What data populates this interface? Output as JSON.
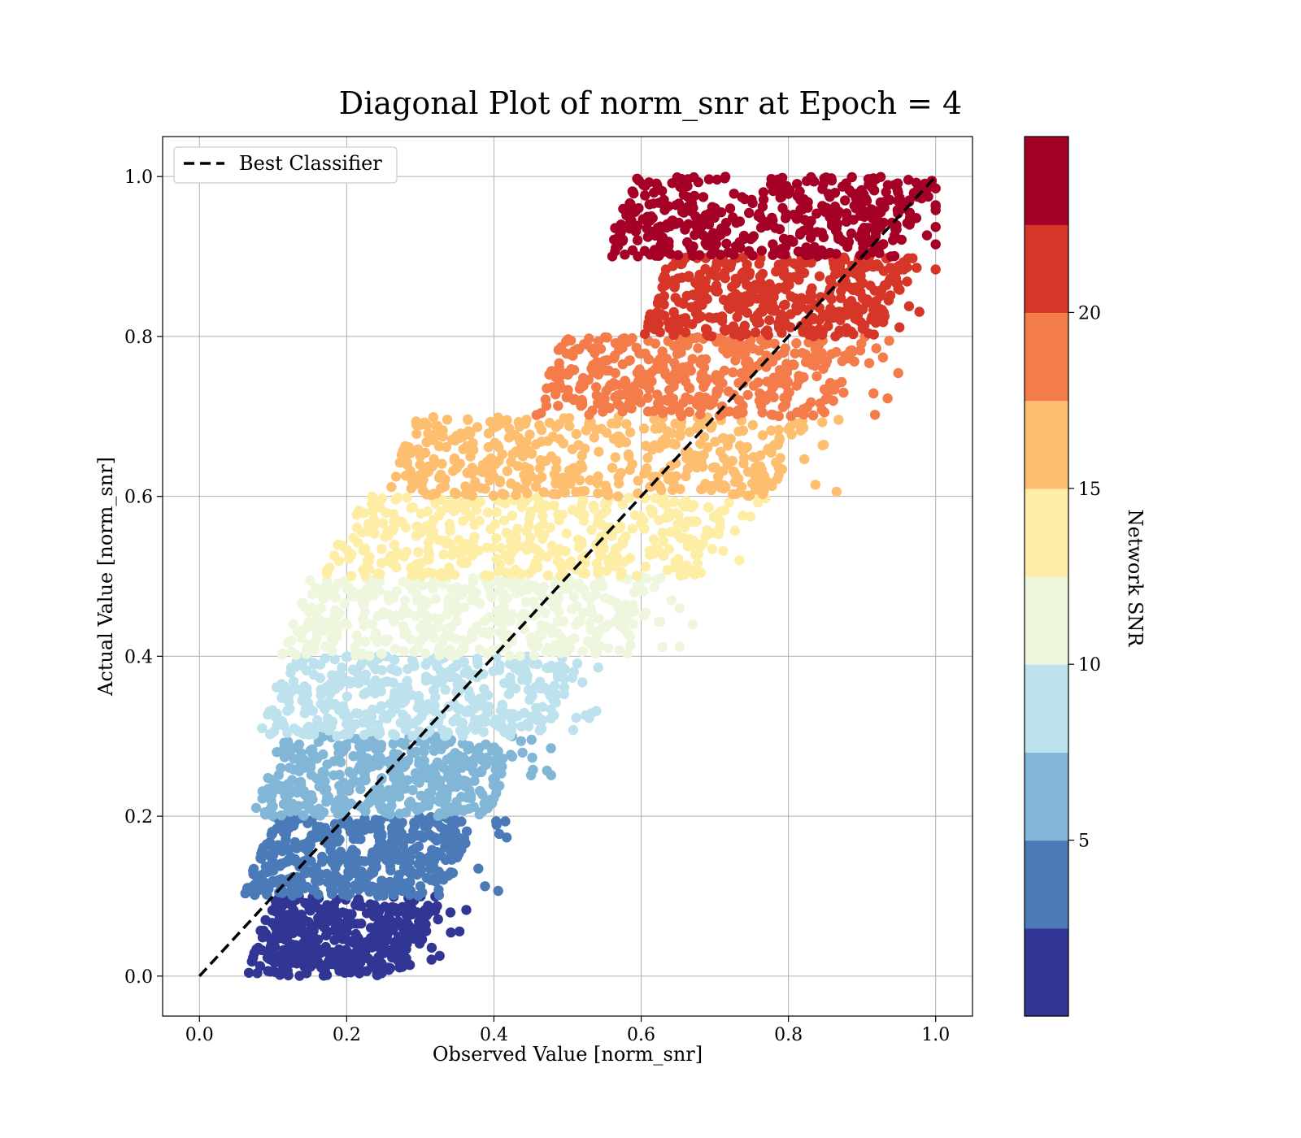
{
  "chart_data": {
    "type": "scatter",
    "title": "Diagonal Plot of norm_snr at Epoch = 4",
    "xlabel": "Observed Value [norm_snr]",
    "ylabel": "Actual Value [norm_snr]",
    "xlim": [
      -0.05,
      1.05
    ],
    "ylim": [
      -0.05,
      1.05
    ],
    "x_ticks": [
      "0.0",
      "0.2",
      "0.4",
      "0.6",
      "0.8",
      "1.0"
    ],
    "y_ticks": [
      "0.0",
      "0.2",
      "0.4",
      "0.6",
      "0.8",
      "1.0"
    ],
    "grid": true,
    "legend": {
      "placement": "upper-left",
      "label": "Best Classifier"
    },
    "reference_line": {
      "label": "Best Classifier",
      "x": [
        0,
        1
      ],
      "y": [
        0,
        1
      ],
      "style": "dashed",
      "color": "#000000"
    },
    "colorbar": {
      "label": "Network SNR",
      "range": [
        0,
        25
      ],
      "ticks": [
        "5",
        "10",
        "15",
        "20"
      ],
      "band_colors": [
        "#313695",
        "#4a7ab7",
        "#82b6d7",
        "#bde2ed",
        "#eef6dd",
        "#fdeda5",
        "#fdbe6f",
        "#f47c4b",
        "#d63628",
        "#a50026"
      ]
    },
    "bands": [
      {
        "y_range": [
          0.0,
          0.1
        ],
        "color": "#313695",
        "x_min": 0.06,
        "x_max": 0.33
      },
      {
        "y_range": [
          0.1,
          0.2
        ],
        "color": "#4a7ab7",
        "x_min": 0.06,
        "x_max": 0.38
      },
      {
        "y_range": [
          0.2,
          0.3
        ],
        "color": "#82b6d7",
        "x_min": 0.07,
        "x_max": 0.44
      },
      {
        "y_range": [
          0.3,
          0.4
        ],
        "color": "#bde2ed",
        "x_min": 0.08,
        "x_max": 0.52
      },
      {
        "y_range": [
          0.4,
          0.5
        ],
        "color": "#eef6dd",
        "x_min": 0.11,
        "x_max": 0.63
      },
      {
        "y_range": [
          0.5,
          0.6
        ],
        "color": "#fdeda5",
        "x_min": 0.17,
        "x_max": 0.73
      },
      {
        "y_range": [
          0.6,
          0.7
        ],
        "color": "#fdbe6f",
        "x_min": 0.25,
        "x_max": 0.83
      },
      {
        "y_range": [
          0.7,
          0.8
        ],
        "color": "#f47c4b",
        "x_min": 0.45,
        "x_max": 0.91
      },
      {
        "y_range": [
          0.8,
          0.9
        ],
        "color": "#d63628",
        "x_min": 0.6,
        "x_max": 0.97
      },
      {
        "y_range": [
          0.9,
          1.0
        ],
        "color": "#a50026",
        "x_min": 0.55,
        "x_max": 1.0
      }
    ]
  }
}
